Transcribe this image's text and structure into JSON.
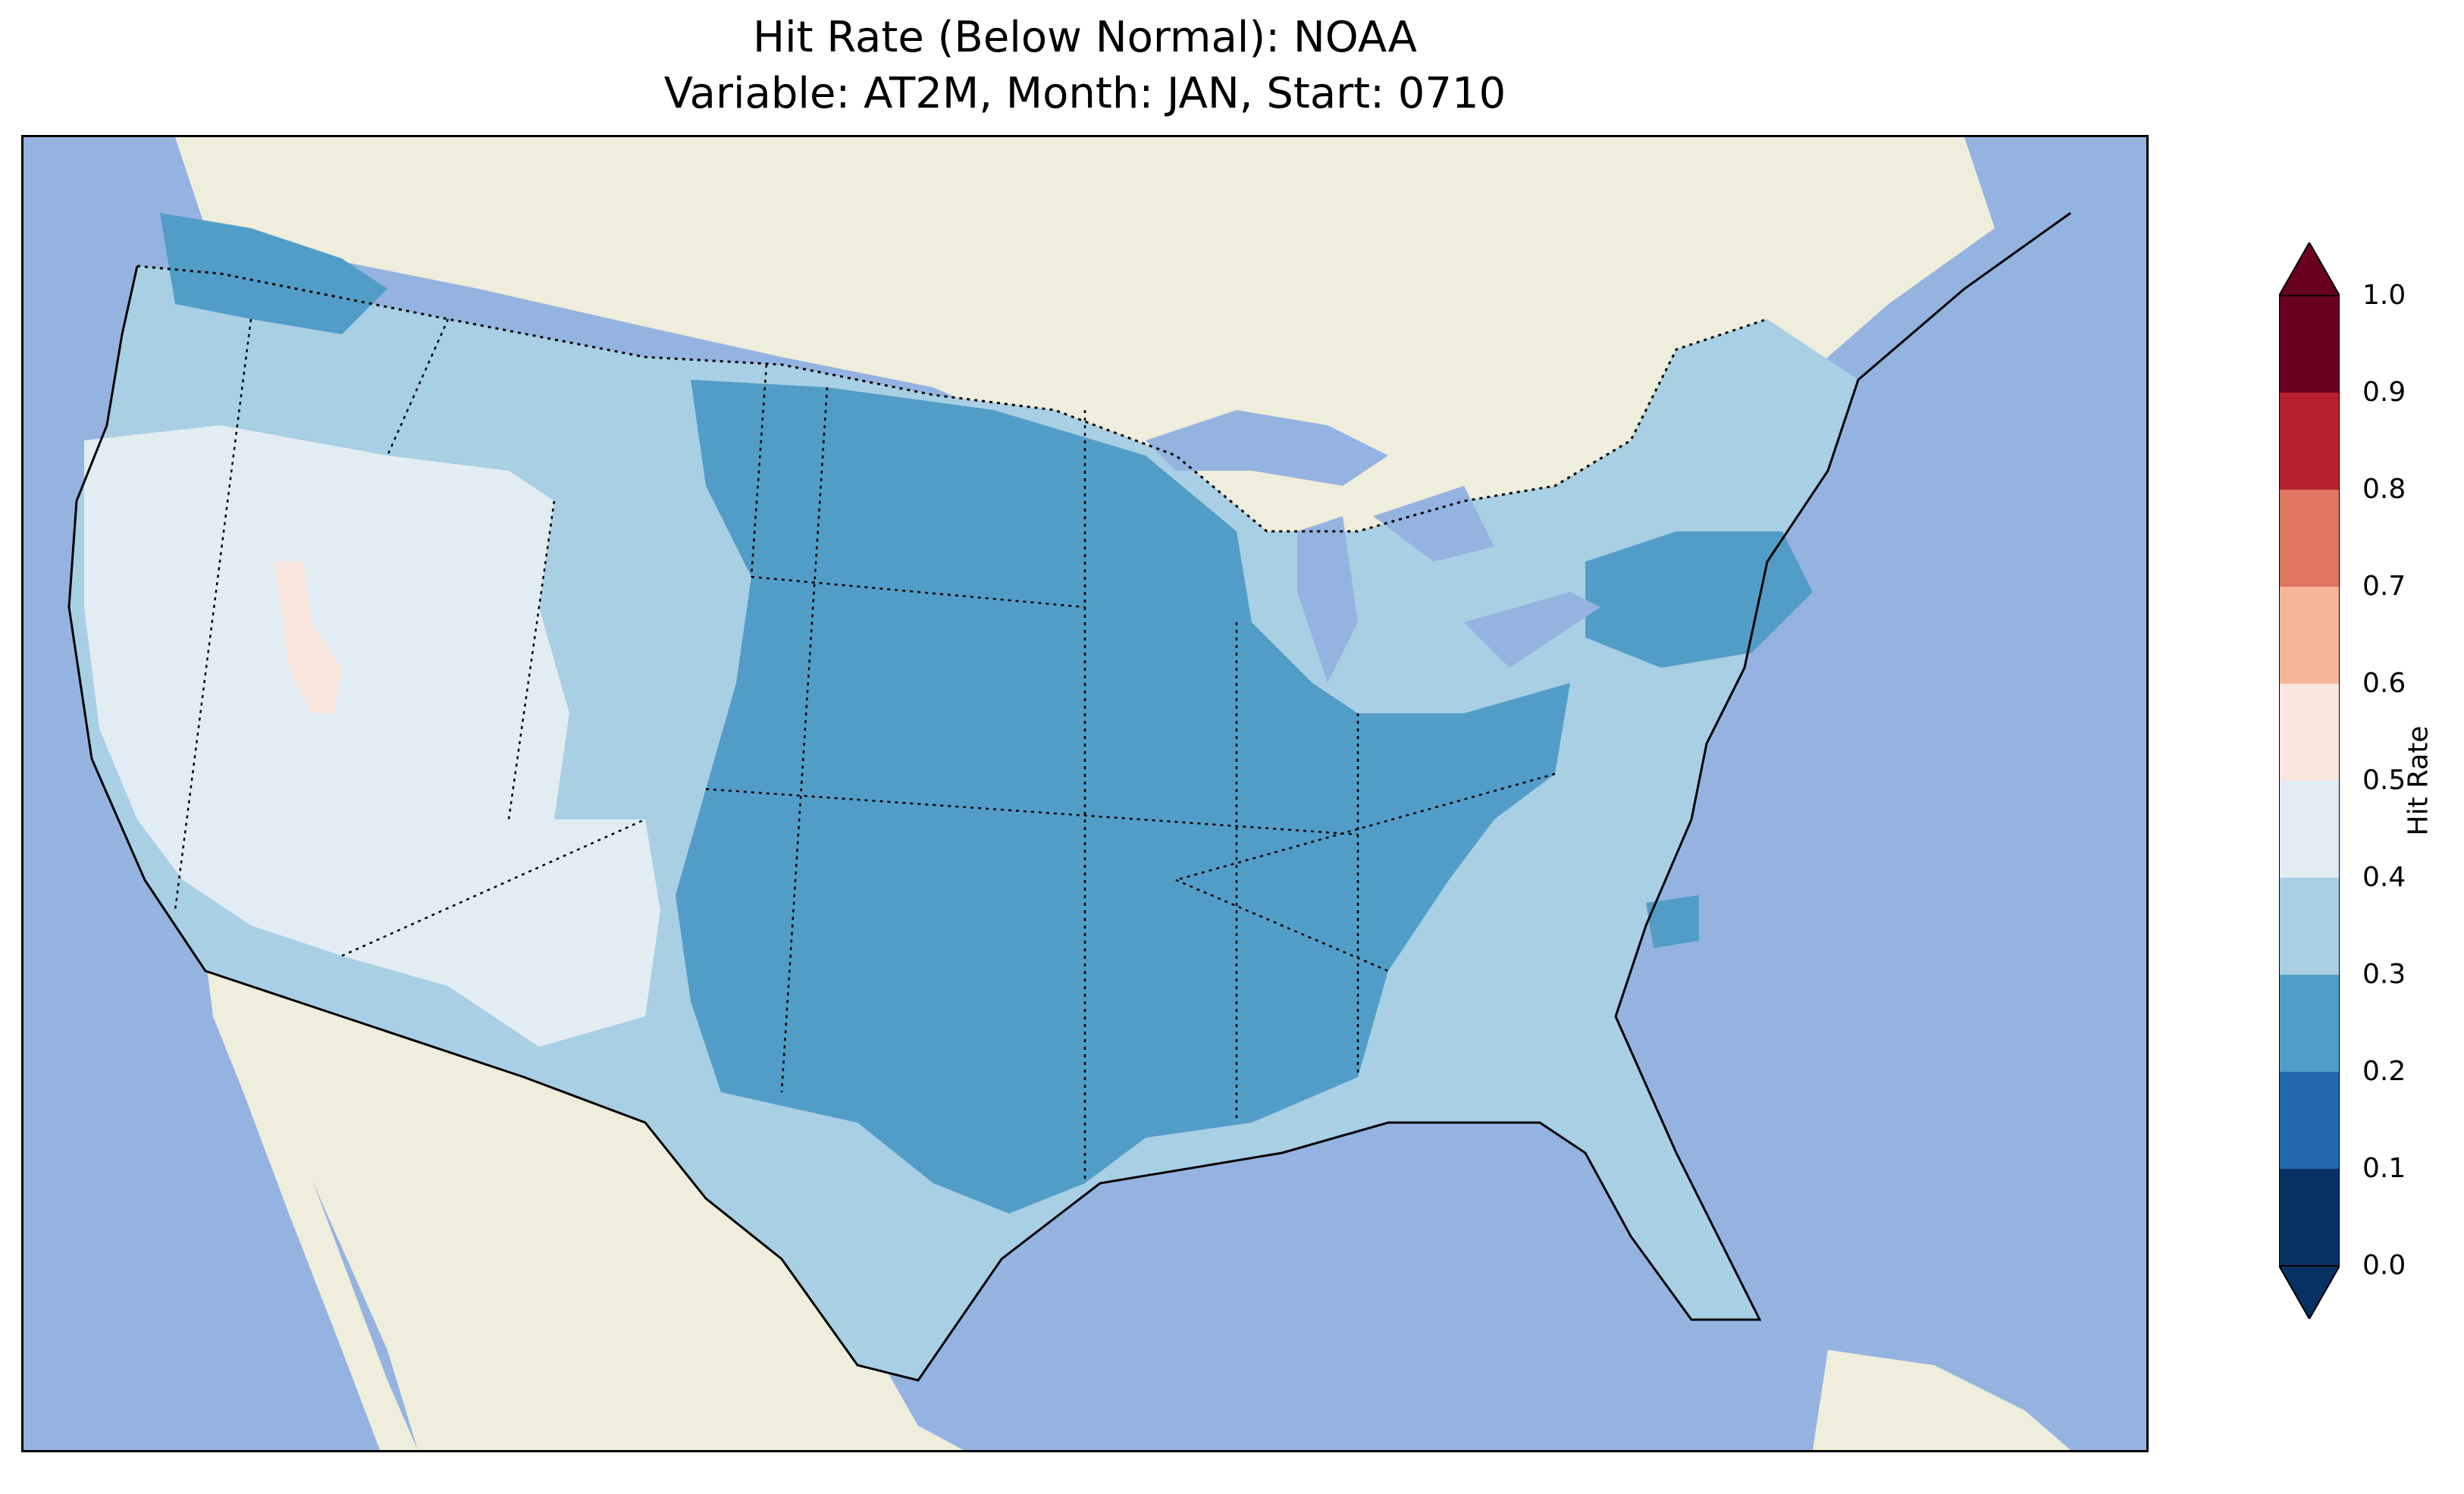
{
  "title": {
    "line1": "Hit Rate (Below Normal): NOAA",
    "line2": "Variable: AT2M, Month: JAN, Start: 0710"
  },
  "colorbar": {
    "label": "Hit Rate",
    "ticks": [
      "0.0",
      "0.1",
      "0.2",
      "0.3",
      "0.4",
      "0.5",
      "0.6",
      "0.7",
      "0.8",
      "0.9",
      "1.0"
    ],
    "bins": [
      {
        "range": "0.0-0.1",
        "color": "#073163"
      },
      {
        "range": "0.1-0.2",
        "color": "#2368ad"
      },
      {
        "range": "0.2-0.3",
        "color": "#529dc8"
      },
      {
        "range": "0.3-0.4",
        "color": "#a8cfe3"
      },
      {
        "range": "0.4-0.5",
        "color": "#e2ecf3"
      },
      {
        "range": "0.5-0.6",
        "color": "#f9e6df"
      },
      {
        "range": "0.6-0.7",
        "color": "#f5b698"
      },
      {
        "range": "0.7-0.8",
        "color": "#df745f"
      },
      {
        "range": "0.8-0.9",
        "color": "#b61f2e"
      },
      {
        "range": "0.9-1.0",
        "color": "#6a0020"
      }
    ],
    "extend": "both"
  },
  "map": {
    "ocean_color": "#95b3e0",
    "land_color": "#efeddb",
    "regions": [
      {
        "name": "Pacific Northwest",
        "hit_rate_bin": "0.2-0.3"
      },
      {
        "name": "California & Great Basin",
        "hit_rate_bin": "0.4-0.5"
      },
      {
        "name": "Central Nevada",
        "hit_rate_bin": "0.5-0.6"
      },
      {
        "name": "Northern Rockies",
        "hit_rate_bin": "0.3-0.4"
      },
      {
        "name": "Great Plains & South-Central",
        "hit_rate_bin": "0.2-0.3"
      },
      {
        "name": "Upper Midwest & Great Lakes",
        "hit_rate_bin": "0.2-0.3"
      },
      {
        "name": "Southeast & Florida",
        "hit_rate_bin": "0.3-0.4"
      },
      {
        "name": "Northeast",
        "hit_rate_bin": "0.2-0.3"
      },
      {
        "name": "Mid-Atlantic",
        "hit_rate_bin": "0.3-0.4"
      }
    ]
  }
}
